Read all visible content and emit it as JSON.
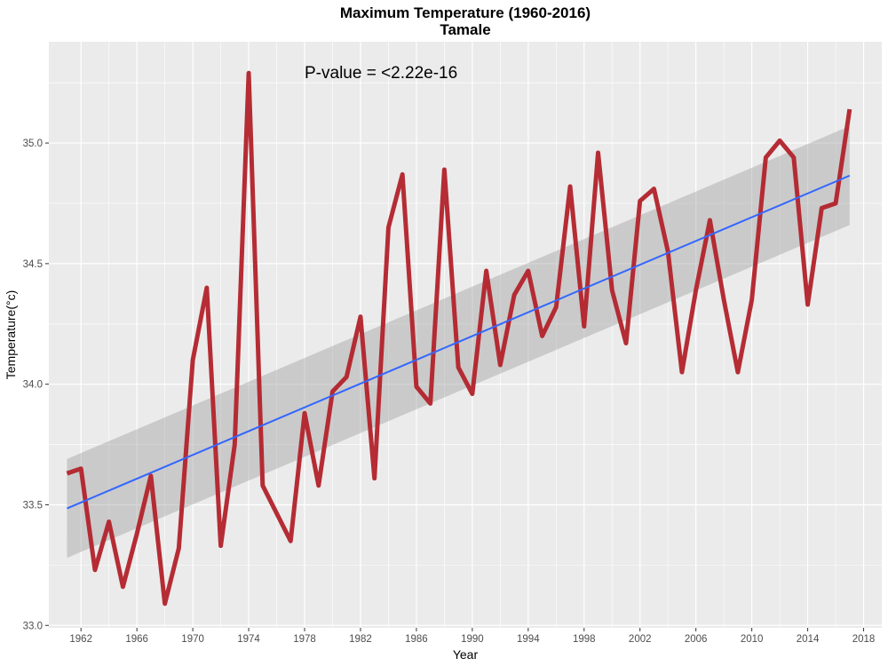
{
  "chart_data": {
    "type": "line",
    "title": "Maximum Temperature (1960-2016)",
    "subtitle": "Tamale",
    "xlabel": "Year",
    "ylabel": "Temperature(°c)",
    "annotation": "P-value = <2.22e-16",
    "xlim": [
      1959.7,
      2019.3
    ],
    "ylim": [
      32.99,
      35.42
    ],
    "x_ticks": [
      1962,
      1966,
      1970,
      1974,
      1978,
      1982,
      1986,
      1990,
      1994,
      1998,
      2002,
      2006,
      2010,
      2014,
      2018
    ],
    "x_tick_labels": [
      "1962",
      "1966",
      "1970",
      "1974",
      "1978",
      "1982",
      "1986",
      "1990",
      "1994",
      "1998",
      "2002",
      "2006",
      "2010",
      "2014",
      "2018"
    ],
    "y_ticks": [
      33.0,
      33.5,
      34.0,
      34.5,
      35.0
    ],
    "y_tick_labels": [
      "33.0",
      "33.5",
      "34.0",
      "34.5",
      "35.0"
    ],
    "grid": true,
    "legend": "none",
    "series": [
      {
        "type": "line",
        "color": "#b2222a",
        "x": [
          1961,
          1962,
          1963,
          1964,
          1965,
          1966,
          1967,
          1968,
          1969,
          1970,
          1971,
          1972,
          1973,
          1974,
          1975,
          1977,
          1978,
          1979,
          1980,
          1981,
          1982,
          1983,
          1984,
          1985,
          1986,
          1987,
          1988,
          1989,
          1990,
          1991,
          1992,
          1993,
          1994,
          1995,
          1996,
          1997,
          1998,
          1999,
          2000,
          2001,
          2002,
          2003,
          2004,
          2005,
          2006,
          2007,
          2008,
          2009,
          2010,
          2011,
          2012,
          2013,
          2014,
          2015,
          2016,
          2017
        ],
        "y": [
          33.63,
          33.65,
          33.23,
          33.43,
          33.16,
          33.38,
          33.62,
          33.09,
          33.32,
          34.1,
          34.4,
          33.33,
          33.75,
          35.29,
          33.58,
          33.35,
          33.88,
          33.58,
          33.97,
          34.03,
          34.28,
          33.61,
          34.65,
          34.87,
          33.99,
          33.92,
          34.89,
          34.07,
          33.96,
          34.47,
          34.08,
          34.37,
          34.47,
          34.2,
          34.32,
          34.82,
          34.24,
          34.96,
          34.39,
          34.17,
          34.76,
          34.81,
          34.55,
          34.05,
          34.39,
          34.68,
          34.35,
          34.05,
          34.35,
          34.94,
          35.01,
          34.94,
          34.33,
          34.73,
          34.75,
          35.14
        ]
      },
      {
        "type": "trend",
        "color": "#3366ff",
        "x": [
          1961,
          2017
        ],
        "y": [
          33.485,
          34.865
        ],
        "ci_color": "#999999",
        "ci_lower": [
          33.28,
          34.66
        ],
        "ci_upper": [
          33.69,
          35.07
        ]
      }
    ]
  }
}
